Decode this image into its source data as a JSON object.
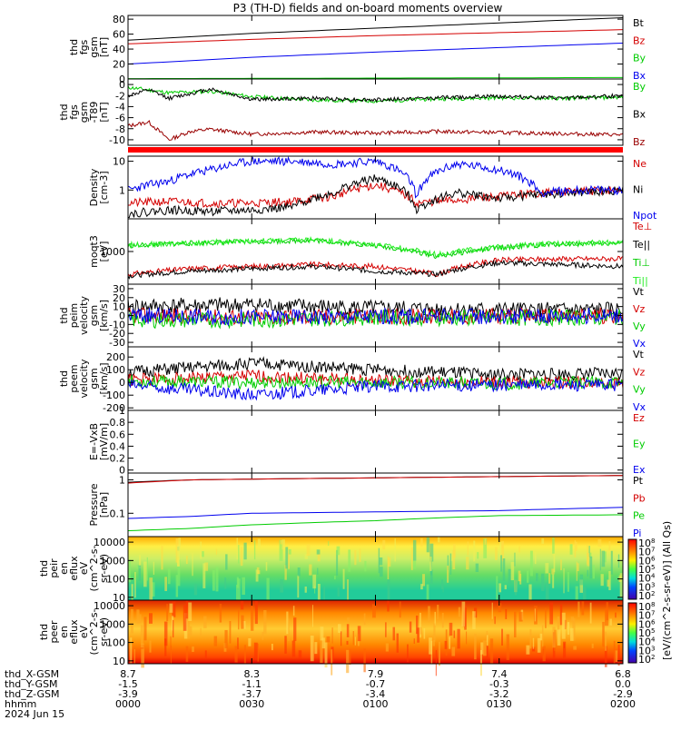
{
  "title": "P3 (TH-D) fields and on-board moments overview",
  "colors": {
    "black": "#000000",
    "red": "#d40000",
    "green": "#00cc00",
    "blue": "#0000ee",
    "darkred": "#990000",
    "brightred": "#ff0000",
    "brightgreen": "#22ee22"
  },
  "bottom": {
    "row_labels": [
      "thd_X-GSM",
      "thd_Y-GSM",
      "thd_Z-GSM",
      "hhmm",
      "2024 Jun 15"
    ],
    "columns": [
      {
        "vals": [
          "8.7",
          "-1.5",
          "-3.9",
          "0000"
        ]
      },
      {
        "vals": [
          "8.3",
          "-1.1",
          "-3.7",
          "0030"
        ]
      },
      {
        "vals": [
          "7.9",
          "-0.7",
          "-3.4",
          "0100"
        ]
      },
      {
        "vals": [
          "7.4",
          "-0.3",
          "-3.2",
          "0130"
        ]
      },
      {
        "vals": [
          "6.8",
          "0.0",
          "-2.9",
          "0200"
        ]
      }
    ]
  },
  "colorbar": {
    "label": "[eV/(cm^2-s-sr-eV)] (All Qs)",
    "ticks": [
      "10^8",
      "10^7",
      "10^6",
      "10^5",
      "10^4",
      "10^3",
      "10^2"
    ],
    "ticks2": [
      "10^8",
      "10^7",
      "10^6",
      "10^5",
      "10^4",
      "10^3",
      "10^2"
    ]
  },
  "chart_data": [
    {
      "id": "fgs_gsm",
      "type": "line",
      "ylabel_lines": [
        "thd",
        "fgs",
        "gsm",
        "[nT]"
      ],
      "ylim": [
        0,
        85
      ],
      "yticks": [
        0,
        20,
        40,
        60,
        80
      ],
      "series": [
        {
          "name": "Bt",
          "color": "black",
          "x": [
            0,
            10,
            30,
            60,
            90,
            120
          ],
          "values": [
            52,
            55,
            61,
            68,
            75,
            82
          ]
        },
        {
          "name": "Bz",
          "color": "red",
          "x": [
            0,
            10,
            30,
            60,
            90,
            120
          ],
          "values": [
            47,
            49,
            53,
            58,
            62,
            66
          ]
        },
        {
          "name": "By",
          "color": "green",
          "x": [
            0,
            30,
            60,
            90,
            120
          ],
          "values": [
            0.5,
            0.8,
            1.2,
            1.5,
            2
          ]
        },
        {
          "name": "Bx",
          "color": "blue",
          "x": [
            0,
            10,
            30,
            60,
            90,
            120
          ],
          "values": [
            20,
            23,
            29,
            36,
            42,
            48
          ]
        }
      ]
    },
    {
      "id": "fgs_gsm_detrended",
      "type": "line",
      "ylabel_lines": [
        "thd",
        "fgs",
        "gsm",
        "-T89",
        "[nT]"
      ],
      "ylim": [
        -11,
        1
      ],
      "yticks": [
        -10,
        -8,
        -6,
        -4,
        -2,
        0
      ],
      "series": [
        {
          "name": "By",
          "color": "green",
          "x": [
            0,
            5,
            10,
            20,
            30,
            45,
            60,
            75,
            90,
            105,
            120
          ],
          "values": [
            -0.5,
            -1,
            -1.5,
            -1.2,
            -2.2,
            -2.8,
            -3,
            -2.6,
            -2.4,
            -2.5,
            -2.3
          ]
        },
        {
          "name": "Bx",
          "color": "black",
          "x": [
            0,
            5,
            10,
            20,
            30,
            45,
            60,
            75,
            90,
            105,
            120
          ],
          "values": [
            -2,
            -1,
            -2.5,
            -0.8,
            -2.7,
            -2.5,
            -2.8,
            -2.4,
            -2.1,
            -2.5,
            -2
          ]
        },
        {
          "name": "Bz",
          "color": "darkred",
          "x": [
            0,
            5,
            10,
            15,
            20,
            30,
            45,
            60,
            75,
            90,
            105,
            120
          ],
          "values": [
            -7.5,
            -6.8,
            -10,
            -8.5,
            -8.1,
            -9,
            -8.6,
            -8.8,
            -8.5,
            -8.7,
            -8.9,
            -9.1
          ]
        }
      ]
    },
    {
      "id": "density",
      "type": "line",
      "ylabel_lines": [
        "Density",
        "[cm-3]"
      ],
      "yscale": "log",
      "ylim": [
        0.1,
        15
      ],
      "yticks": [
        1,
        10
      ],
      "series": [
        {
          "name": "Ne",
          "color": "red",
          "x": [
            0,
            10,
            20,
            30,
            40,
            50,
            60,
            70,
            80,
            90,
            100,
            110,
            120
          ],
          "values": [
            0.35,
            0.4,
            0.35,
            0.35,
            0.4,
            0.6,
            1.5,
            0.35,
            0.45,
            0.6,
            0.8,
            0.9,
            1.0
          ]
        },
        {
          "name": "Ni",
          "color": "black",
          "x": [
            0,
            10,
            20,
            30,
            40,
            50,
            60,
            70,
            80,
            90,
            100,
            110,
            120
          ],
          "values": [
            0.15,
            0.2,
            0.18,
            0.2,
            0.25,
            0.8,
            2.5,
            0.2,
            0.8,
            0.5,
            0.7,
            0.8,
            1.0
          ]
        },
        {
          "name": "Npot",
          "color": "blue",
          "x": [
            0,
            10,
            20,
            30,
            40,
            50,
            60,
            70,
            80,
            90,
            100,
            110,
            120
          ],
          "values": [
            1.0,
            2.0,
            5.0,
            10,
            10,
            8,
            10,
            0.5,
            8,
            5,
            0.8,
            1.0,
            1.0
          ]
        }
      ]
    },
    {
      "id": "temperature",
      "type": "line",
      "ylabel_lines": [
        "moqt3",
        "[eV]"
      ],
      "yscale": "log",
      "ylim": [
        100,
        10000
      ],
      "yticks": [
        1000
      ],
      "series": [
        {
          "name": "Te⊥",
          "color": "red",
          "x": [
            0,
            15,
            30,
            45,
            60,
            75,
            90,
            105,
            120
          ],
          "values": [
            200,
            300,
            350,
            400,
            350,
            200,
            550,
            600,
            600
          ]
        },
        {
          "name": "Te||",
          "color": "black",
          "x": [
            0,
            15,
            30,
            45,
            60,
            75,
            90,
            105,
            120
          ],
          "values": [
            180,
            250,
            300,
            350,
            250,
            200,
            450,
            400,
            350
          ]
        },
        {
          "name": "Ti⊥",
          "color": "green",
          "x": [
            0,
            15,
            30,
            45,
            60,
            75,
            90,
            105,
            120
          ],
          "values": [
            1500,
            1800,
            2000,
            2200,
            1500,
            700,
            1300,
            1700,
            1800
          ]
        },
        {
          "name": "Ti||",
          "color": "brightgreen",
          "x": [
            0,
            15,
            30,
            45,
            60,
            75,
            90,
            105,
            120
          ],
          "values": [
            1600,
            1800,
            2100,
            2300,
            1600,
            800,
            1400,
            1800,
            1900
          ]
        }
      ]
    },
    {
      "id": "ion_velocity",
      "type": "line",
      "ylabel_lines": [
        "thd",
        "peim",
        "velocity",
        "gsm",
        "[km/s]"
      ],
      "ylim": [
        -35,
        35
      ],
      "yticks": [
        -30,
        -20,
        -10,
        0,
        10,
        20,
        30
      ],
      "series": [
        {
          "name": "Vt",
          "color": "black",
          "x": [
            0,
            30,
            60,
            90,
            120
          ],
          "values": [
            10,
            12,
            8,
            6,
            6
          ]
        },
        {
          "name": "Vz",
          "color": "red",
          "x": [
            0,
            30,
            60,
            90,
            120
          ],
          "values": [
            0,
            -2,
            -1,
            -1,
            0
          ]
        },
        {
          "name": "Vy",
          "color": "green",
          "x": [
            0,
            30,
            60,
            90,
            120
          ],
          "values": [
            -5,
            -5,
            -2,
            -3,
            -2
          ]
        },
        {
          "name": "Vx",
          "color": "blue",
          "x": [
            0,
            30,
            60,
            90,
            120
          ],
          "values": [
            0,
            -2,
            -1,
            -1,
            0
          ]
        }
      ]
    },
    {
      "id": "electron_velocity",
      "type": "line",
      "ylabel_lines": [
        "thd",
        "peem",
        "velocity",
        "gsm",
        "[km/s]"
      ],
      "ylim": [
        -220,
        280
      ],
      "yticks": [
        -200,
        -100,
        0,
        100,
        200
      ],
      "series": [
        {
          "name": "Vt",
          "color": "black",
          "x": [
            0,
            30,
            60,
            90,
            120
          ],
          "values": [
            80,
            150,
            100,
            60,
            70
          ]
        },
        {
          "name": "Vz",
          "color": "red",
          "x": [
            0,
            30,
            60,
            90,
            120
          ],
          "values": [
            20,
            50,
            10,
            0,
            0
          ]
        },
        {
          "name": "Vy",
          "color": "green",
          "x": [
            0,
            30,
            60,
            90,
            120
          ],
          "values": [
            10,
            0,
            0,
            -10,
            0
          ]
        },
        {
          "name": "Vx",
          "color": "blue",
          "x": [
            0,
            30,
            60,
            90,
            120
          ],
          "values": [
            -20,
            -100,
            -30,
            -20,
            -20
          ]
        }
      ]
    },
    {
      "id": "efield",
      "type": "line",
      "ylabel_lines": [
        "E=-VxB",
        "[mV/m]"
      ],
      "ylim": [
        -0.05,
        1.0
      ],
      "yticks": [
        0.0,
        0.2,
        0.4,
        0.6,
        0.8,
        1.0
      ],
      "series": [
        {
          "name": "Ez",
          "color": "red",
          "x": [],
          "values": []
        },
        {
          "name": "Ey",
          "color": "green",
          "x": [],
          "values": []
        },
        {
          "name": "Ex",
          "color": "blue",
          "x": [],
          "values": []
        }
      ]
    },
    {
      "id": "pressure",
      "type": "line",
      "ylabel_lines": [
        "Pressure",
        "[nPa]"
      ],
      "yscale": "log",
      "ylim": [
        0.02,
        1.6
      ],
      "yticks": [
        0.1,
        1.0
      ],
      "series": [
        {
          "name": "Pt",
          "color": "black",
          "x": [
            0,
            15,
            30,
            60,
            90,
            120
          ],
          "values": [
            0.85,
            1.0,
            1.05,
            1.15,
            1.25,
            1.35
          ]
        },
        {
          "name": "Pb",
          "color": "red",
          "x": [
            0,
            15,
            30,
            60,
            90,
            120
          ],
          "values": [
            0.8,
            1.0,
            1.05,
            1.15,
            1.25,
            1.35
          ]
        },
        {
          "name": "Pe",
          "color": "green",
          "x": [
            0,
            15,
            30,
            60,
            90,
            120
          ],
          "values": [
            0.03,
            0.035,
            0.045,
            0.06,
            0.085,
            0.09
          ]
        },
        {
          "name": "Pi",
          "color": "blue",
          "x": [
            0,
            15,
            30,
            60,
            90,
            120
          ],
          "values": [
            0.07,
            0.08,
            0.1,
            0.11,
            0.12,
            0.15
          ]
        }
      ]
    },
    {
      "id": "ion_spectrogram",
      "type": "heatmap",
      "ylabel_lines": [
        "thd",
        "peir",
        "en",
        "eflux",
        "eV",
        "(cm^2-s-",
        "sr-eV)"
      ],
      "yscale": "log",
      "ylim": [
        7,
        20000
      ],
      "yticks": [
        10,
        100,
        1000,
        10000
      ]
    },
    {
      "id": "electron_spectrogram",
      "type": "heatmap",
      "ylabel_lines": [
        "thd",
        "peer",
        "en",
        "eflux",
        "eV",
        "(cm^2-s-",
        "sr-eV)"
      ],
      "yscale": "log",
      "ylim": [
        7,
        20000
      ],
      "yticks": [
        10,
        100,
        1000,
        10000
      ]
    }
  ]
}
